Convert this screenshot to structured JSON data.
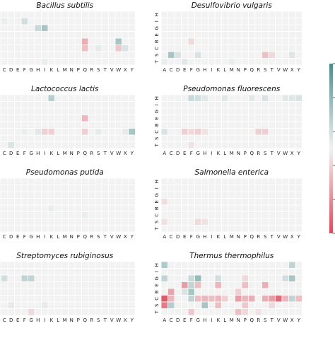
{
  "chart_data": {
    "type": "heatmap",
    "x_categories": [
      "A",
      "C",
      "D",
      "E",
      "F",
      "G",
      "H",
      "I",
      "K",
      "L",
      "M",
      "N",
      "P",
      "Q",
      "R",
      "S",
      "T",
      "V",
      "W",
      "X",
      "Y"
    ],
    "y_categories": [
      "H",
      "I",
      "G",
      "E",
      "B",
      "C",
      "S",
      "T"
    ],
    "value_range": [
      -1,
      1
    ],
    "colormap": {
      "negative": "#d94a5a",
      "zero": "#f2f2f2",
      "positive": "#4d8c8c"
    },
    "colorbar": {
      "position": "right",
      "ticks": []
    },
    "panels": [
      {
        "title": "Bacillus subtilis",
        "cells": [
          {
            "x": "F",
            "y": "I",
            "v": 0.2
          },
          {
            "x": "H",
            "y": "G",
            "v": 0.25
          },
          {
            "x": "I",
            "y": "G",
            "v": 0.45
          },
          {
            "x": "C",
            "y": "I",
            "v": 0.05
          },
          {
            "x": "Q",
            "y": "B",
            "v": -0.4
          },
          {
            "x": "Q",
            "y": "C",
            "v": -0.3
          },
          {
            "x": "W",
            "y": "B",
            "v": 0.45
          },
          {
            "x": "W",
            "y": "C",
            "v": -0.25
          },
          {
            "x": "X",
            "y": "C",
            "v": 0.15
          },
          {
            "x": "S",
            "y": "C",
            "v": 0.08
          },
          {
            "x": "I",
            "y": "T",
            "v": 0.05
          }
        ]
      },
      {
        "title": "Desulfovibrio vulgaris",
        "cells": [
          {
            "x": "C",
            "y": "S",
            "v": 0.45
          },
          {
            "x": "D",
            "y": "S",
            "v": 0.15
          },
          {
            "x": "E",
            "y": "T",
            "v": 0.1
          },
          {
            "x": "F",
            "y": "B",
            "v": -0.15
          },
          {
            "x": "G",
            "y": "S",
            "v": 0.15
          },
          {
            "x": "S",
            "y": "S",
            "v": -0.3
          },
          {
            "x": "T",
            "y": "S",
            "v": -0.15
          },
          {
            "x": "X",
            "y": "S",
            "v": 0.12
          },
          {
            "x": "A",
            "y": "T",
            "v": 0.05
          },
          {
            "x": "M",
            "y": "T",
            "v": 0.05
          }
        ]
      },
      {
        "title": "Lactococcus lactis",
        "cells": [
          {
            "x": "K",
            "y": "H",
            "v": 0.35
          },
          {
            "x": "Q",
            "y": "E",
            "v": -0.35
          },
          {
            "x": "Y",
            "y": "C",
            "v": 0.45
          },
          {
            "x": "I",
            "y": "C",
            "v": -0.2
          },
          {
            "x": "K",
            "y": "C",
            "v": -0.2
          },
          {
            "x": "Q",
            "y": "C",
            "v": -0.2
          },
          {
            "x": "D",
            "y": "T",
            "v": 0.15
          },
          {
            "x": "S",
            "y": "C",
            "v": 0.08
          },
          {
            "x": "X",
            "y": "C",
            "v": 0.08
          },
          {
            "x": "H",
            "y": "C",
            "v": 0.1
          },
          {
            "x": "F",
            "y": "C",
            "v": 0.05
          }
        ]
      },
      {
        "title": "Pseudomonas fluorescens",
        "cells": [
          {
            "x": "F",
            "y": "H",
            "v": 0.25
          },
          {
            "x": "G",
            "y": "H",
            "v": 0.2
          },
          {
            "x": "H",
            "y": "H",
            "v": 0.1
          },
          {
            "x": "L",
            "y": "H",
            "v": 0.1
          },
          {
            "x": "Q",
            "y": "H",
            "v": 0.1
          },
          {
            "x": "S",
            "y": "H",
            "v": 0.15
          },
          {
            "x": "X",
            "y": "H",
            "v": 0.12
          },
          {
            "x": "Y",
            "y": "H",
            "v": 0.15
          },
          {
            "x": "W",
            "y": "H",
            "v": 0.1
          },
          {
            "x": "E",
            "y": "C",
            "v": -0.2
          },
          {
            "x": "F",
            "y": "C",
            "v": -0.15
          },
          {
            "x": "G",
            "y": "C",
            "v": -0.2
          },
          {
            "x": "H",
            "y": "C",
            "v": -0.1
          },
          {
            "x": "R",
            "y": "C",
            "v": -0.2
          },
          {
            "x": "S",
            "y": "C",
            "v": -0.2
          },
          {
            "x": "A",
            "y": "C",
            "v": 0.15
          },
          {
            "x": "F",
            "y": "T",
            "v": -0.1
          }
        ]
      },
      {
        "title": "Pseudomonas putida",
        "cells": [
          {
            "x": "K",
            "y": "B",
            "v": 0.06
          },
          {
            "x": "Q",
            "y": "C",
            "v": 0.05
          }
        ]
      },
      {
        "title": "Salmonella enterica",
        "cells": [
          {
            "x": "A",
            "y": "E",
            "v": -0.12
          },
          {
            "x": "A",
            "y": "S",
            "v": -0.1
          },
          {
            "x": "G",
            "y": "S",
            "v": -0.15
          },
          {
            "x": "H",
            "y": "S",
            "v": -0.1
          }
        ]
      },
      {
        "title": "Streptomyces rubiginosus",
        "cells": [
          {
            "x": "C",
            "y": "G",
            "v": 0.2
          },
          {
            "x": "F",
            "y": "G",
            "v": 0.3
          },
          {
            "x": "G",
            "y": "G",
            "v": 0.3
          },
          {
            "x": "D",
            "y": "S",
            "v": 0.08
          },
          {
            "x": "I",
            "y": "S",
            "v": 0.08
          },
          {
            "x": "G",
            "y": "T",
            "v": -0.15
          }
        ]
      },
      {
        "title": "Thermus thermophilus",
        "cells": [
          {
            "x": "A",
            "y": "H",
            "v": 0.4
          },
          {
            "x": "X",
            "y": "H",
            "v": 0.3
          },
          {
            "x": "A",
            "y": "G",
            "v": 0.3
          },
          {
            "x": "F",
            "y": "G",
            "v": 0.25
          },
          {
            "x": "G",
            "y": "G",
            "v": 0.55
          },
          {
            "x": "K",
            "y": "G",
            "v": 0.2
          },
          {
            "x": "W",
            "y": "G",
            "v": 0.2
          },
          {
            "x": "X",
            "y": "G",
            "v": 0.45
          },
          {
            "x": "P",
            "y": "G",
            "v": -0.15
          },
          {
            "x": "E",
            "y": "E",
            "v": -0.5
          },
          {
            "x": "F",
            "y": "E",
            "v": 0.3
          },
          {
            "x": "G",
            "y": "E",
            "v": -0.3
          },
          {
            "x": "K",
            "y": "E",
            "v": -0.35
          },
          {
            "x": "P",
            "y": "E",
            "v": -0.3
          },
          {
            "x": "S",
            "y": "E",
            "v": -0.4
          },
          {
            "x": "C",
            "y": "B",
            "v": -0.45
          },
          {
            "x": "E",
            "y": "B",
            "v": 0.15
          },
          {
            "x": "F",
            "y": "B",
            "v": 0.45
          },
          {
            "x": "N",
            "y": "B",
            "v": -0.2
          },
          {
            "x": "A",
            "y": "C",
            "v": -0.9
          },
          {
            "x": "C",
            "y": "C",
            "v": -0.35
          },
          {
            "x": "F",
            "y": "C",
            "v": 0.3
          },
          {
            "x": "G",
            "y": "C",
            "v": -0.3
          },
          {
            "x": "H",
            "y": "C",
            "v": -0.35
          },
          {
            "x": "I",
            "y": "C",
            "v": -0.3
          },
          {
            "x": "K",
            "y": "C",
            "v": -0.35
          },
          {
            "x": "L",
            "y": "C",
            "v": -0.2
          },
          {
            "x": "N",
            "y": "C",
            "v": -0.5
          },
          {
            "x": "P",
            "y": "C",
            "v": -0.35
          },
          {
            "x": "Q",
            "y": "C",
            "v": -0.4
          },
          {
            "x": "S",
            "y": "C",
            "v": -0.4
          },
          {
            "x": "T",
            "y": "C",
            "v": -0.5
          },
          {
            "x": "V",
            "y": "C",
            "v": -0.8
          },
          {
            "x": "W",
            "y": "C",
            "v": -0.35
          },
          {
            "x": "X",
            "y": "C",
            "v": 0.3
          },
          {
            "x": "Y",
            "y": "C",
            "v": -0.3
          },
          {
            "x": "A",
            "y": "S",
            "v": -0.7
          },
          {
            "x": "C",
            "y": "S",
            "v": 0.35
          },
          {
            "x": "H",
            "y": "S",
            "v": 0.45
          },
          {
            "x": "K",
            "y": "S",
            "v": -0.3
          },
          {
            "x": "P",
            "y": "S",
            "v": -0.25
          },
          {
            "x": "T",
            "y": "S",
            "v": -0.15
          },
          {
            "x": "F",
            "y": "T",
            "v": -0.25
          },
          {
            "x": "N",
            "y": "T",
            "v": -0.3
          },
          {
            "x": "P",
            "y": "T",
            "v": -0.15
          },
          {
            "x": "R",
            "y": "T",
            "v": -0.1
          }
        ]
      }
    ]
  }
}
